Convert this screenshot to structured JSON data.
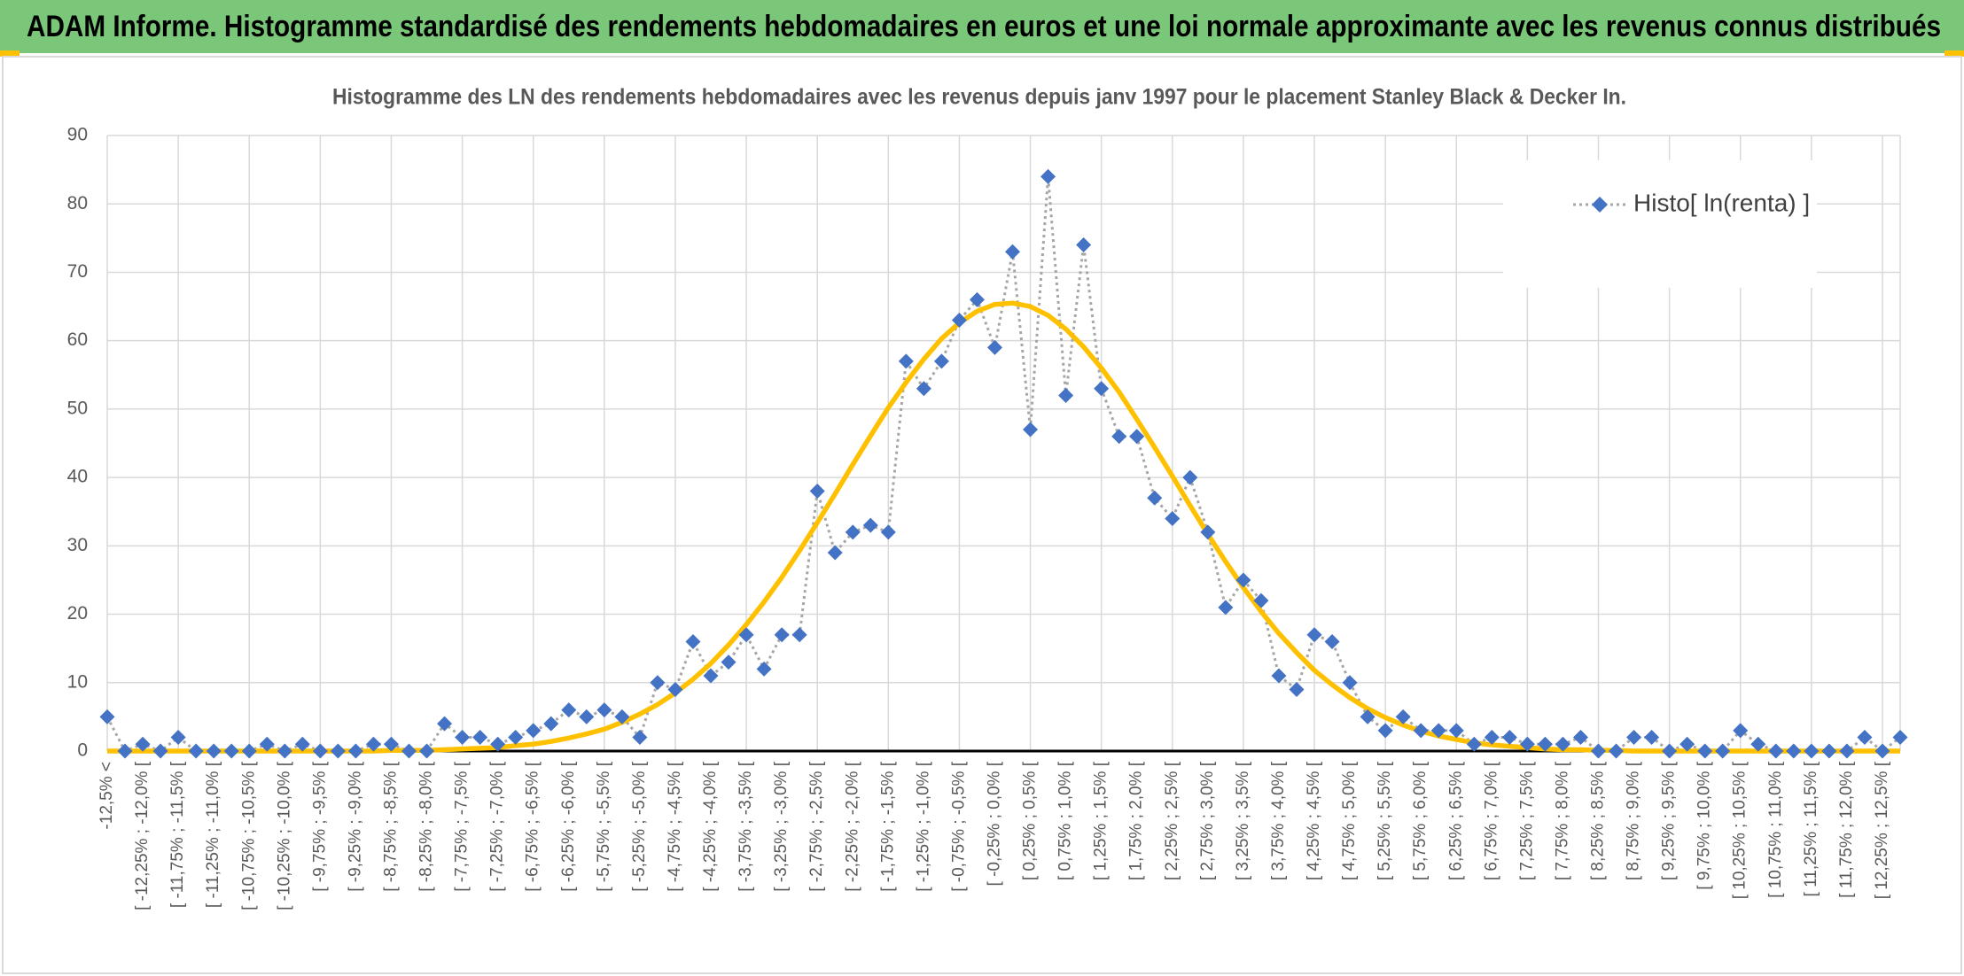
{
  "title": "ADAM Informe. Histogramme standardisé des rendements hebdomadaires en euros et une loi normale approximante avec les revenus connus distribués",
  "chart_data": {
    "type": "line",
    "title": "Histogramme des LN des rendements hebdomadaires avec les revenus depuis janv 1997 pour le placement Stanley Black & Decker In.",
    "categories": [
      "-12,5% <",
      null,
      "[ -12,25% ; -12,0% [",
      null,
      "[ -11,75% ; -11,5% [",
      null,
      "[ -11,25% ; -11,0% [",
      null,
      "[ -10,75% ; -10,5% [",
      null,
      "[ -10,25% ; -10,0% [",
      null,
      "[ -9,75% ; -9,5% [",
      null,
      "[ -9,25% ; -9,0% [",
      null,
      "[ -8,75% ; -8,5% [",
      null,
      "[ -8,25% ; -8,0% [",
      null,
      "[ -7,75% ; -7,5% [",
      null,
      "[ -7,25% ; -7,0% [",
      null,
      "[ -6,75% ; -6,5% [",
      null,
      "[ -6,25% ; -6,0% [",
      null,
      "[ -5,75% ; -5,5% [",
      null,
      "[ -5,25% ; -5,0% [",
      null,
      "[ -4,75% ; -4,5% [",
      null,
      "[ -4,25% ; -4,0% [",
      null,
      "[ -3,75% ; -3,5% [",
      null,
      "[ -3,25% ; -3,0% [",
      null,
      "[ -2,75% ; -2,5% [",
      null,
      "[ -2,25% ; -2,0% [",
      null,
      "[ -1,75% ; -1,5% [",
      null,
      "[ -1,25% ; -1,0% [",
      null,
      "[ -0,75% ; -0,5% [",
      null,
      "[ -0,25% ; 0,0% [",
      null,
      "[ 0,25% ; 0,5% [",
      null,
      "[ 0,75% ; 1,0% [",
      null,
      "[ 1,25% ; 1,5% [",
      null,
      "[ 1,75% ; 2,0% [",
      null,
      "[ 2,25% ; 2,5% [",
      null,
      "[ 2,75% ; 3,0% [",
      null,
      "[ 3,25% ; 3,5% [",
      null,
      "[ 3,75% ; 4,0% [",
      null,
      "[ 4,25% ; 4,5% [",
      null,
      "[ 4,75% ; 5,0% [",
      null,
      "[ 5,25% ; 5,5% [",
      null,
      "[ 5,75% ; 6,0% [",
      null,
      "[ 6,25% ; 6,5% [",
      null,
      "[ 6,75% ; 7,0% [",
      null,
      "[ 7,25% ; 7,5% [",
      null,
      "[ 7,75% ; 8,0% [",
      null,
      "[ 8,25% ; 8,5% [",
      null,
      "[ 8,75% ; 9,0% [",
      null,
      "[ 9,25% ; 9,5% [",
      null,
      "[ 9,75% ; 10,0% [",
      null,
      "[ 10,25% ; 10,5% [",
      null,
      "[ 10,75% ; 11,0% [",
      null,
      "[ 11,25% ; 11,5% [",
      null,
      "[ 11,75% ; 12,0% [",
      null,
      "[ 12,25% ; 12,5% [",
      null
    ],
    "series": [
      {
        "name": "Histo[ ln(renta) ]",
        "color": "#4472c4",
        "line_color": "#a6a6a6",
        "marker": "diamond",
        "values": [
          5,
          0,
          1,
          0,
          2,
          0,
          0,
          0,
          0,
          1,
          0,
          1,
          0,
          0,
          0,
          1,
          1,
          0,
          0,
          4,
          2,
          2,
          1,
          2,
          3,
          4,
          6,
          5,
          6,
          5,
          2,
          10,
          9,
          16,
          11,
          13,
          17,
          12,
          17,
          17,
          38,
          29,
          32,
          33,
          32,
          57,
          53,
          57,
          63,
          66,
          59,
          73,
          47,
          84,
          52,
          74,
          53,
          46,
          46,
          37,
          34,
          40,
          32,
          21,
          25,
          22,
          11,
          9,
          17,
          16,
          10,
          5,
          3,
          5,
          3,
          3,
          3,
          1,
          2,
          2,
          1,
          1,
          1,
          2,
          0,
          0,
          2,
          2,
          0,
          1,
          0,
          0,
          3,
          1,
          0,
          0,
          0,
          0,
          0,
          2,
          0,
          2
        ]
      },
      {
        "color": "#ffc000",
        "values": [
          0,
          0,
          0,
          0,
          0,
          0,
          0,
          0,
          0,
          0,
          0,
          0,
          0,
          0,
          0,
          0,
          0.1,
          0.1,
          0.1,
          0.2,
          0.3,
          0.4,
          0.5,
          0.8,
          1.0,
          1.4,
          1.9,
          2.5,
          3.2,
          4.2,
          5.4,
          6.8,
          8.5,
          10.5,
          12.8,
          15.5,
          18.5,
          21.8,
          25.4,
          29.3,
          33.4,
          37.6,
          41.9,
          46.1,
          50.2,
          53.9,
          57.3,
          60.3,
          62.6,
          64.3,
          65.3,
          65.5,
          65.0,
          63.7,
          61.7,
          59.1,
          56.0,
          52.5,
          48.5,
          44.4,
          40.2,
          35.9,
          31.7,
          27.7,
          23.9,
          20.4,
          17.2,
          14.4,
          11.8,
          9.7,
          7.8,
          6.2,
          4.9,
          3.8,
          2.9,
          2.2,
          1.7,
          1.2,
          0.9,
          0.7,
          0.5,
          0.3,
          0.2,
          0.2,
          0.1,
          0.1,
          0,
          0,
          0,
          0,
          0,
          0,
          0,
          0,
          0,
          0,
          0,
          0,
          0,
          0,
          0,
          0
        ]
      }
    ],
    "ylim": [
      0,
      90
    ],
    "yticks": [
      0,
      10,
      20,
      30,
      40,
      50,
      60,
      70,
      80,
      90
    ],
    "grid": true,
    "legend": "top-right"
  }
}
